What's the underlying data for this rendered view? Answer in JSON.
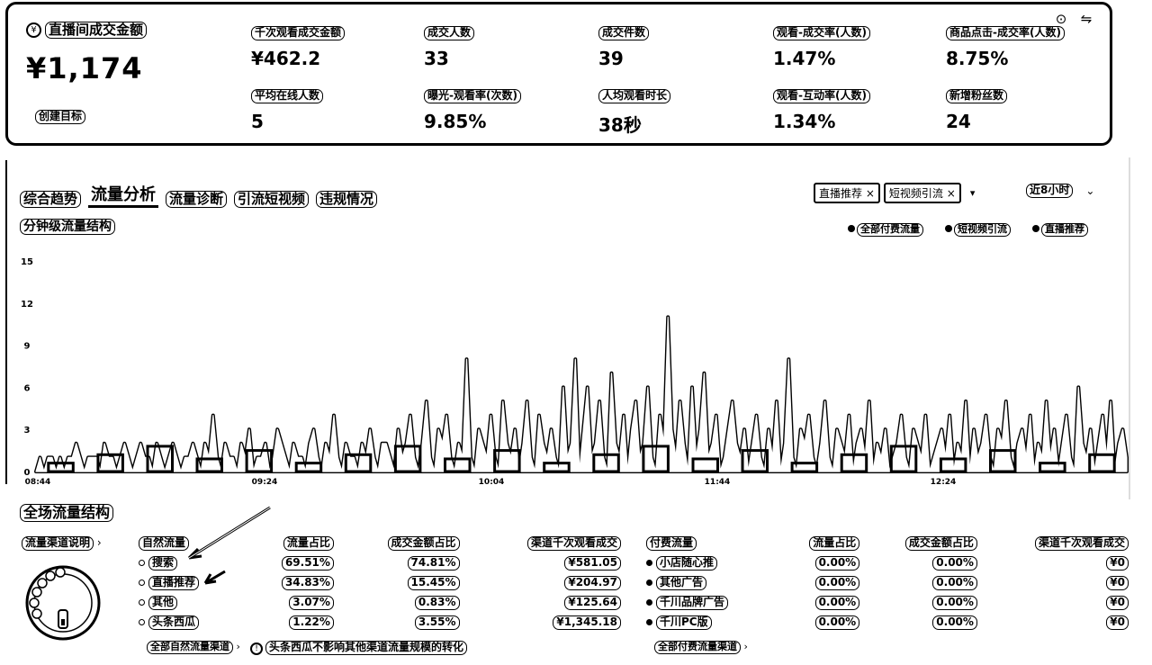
{
  "summary": {
    "main": {
      "label": "直播间成交金额",
      "value": "¥1,174",
      "goal_link": "创建目标"
    },
    "metrics": [
      {
        "label": "千次观看成交金额",
        "value": "¥462.2"
      },
      {
        "label": "成交人数",
        "value": "33"
      },
      {
        "label": "成交件数",
        "value": "39"
      },
      {
        "label": "观看-成交率(人数)",
        "value": "1.47%"
      },
      {
        "label": "商品点击-成交率(人数)",
        "value": "8.75%"
      },
      {
        "label": "平均在线人数",
        "value": "5"
      },
      {
        "label": "曝光-观看率(次数)",
        "value": "9.85%"
      },
      {
        "label": "人均观看时长",
        "value": "38秒"
      },
      {
        "label": "观看-互动率(人数)",
        "value": "1.34%"
      },
      {
        "label": "新增粉丝数",
        "value": "24"
      }
    ]
  },
  "tabs": [
    "综合趋势",
    "流量分析",
    "流量诊断",
    "引流短视频",
    "违规情况"
  ],
  "active_tab": 1,
  "filters": {
    "chips": [
      "直播推荐",
      "短视频引流"
    ],
    "time_range": "近8小时"
  },
  "chart_title": "分钟级流量结构",
  "legend": [
    "全部付费流量",
    "短视频引流",
    "直播推荐"
  ],
  "chart_data": {
    "type": "area",
    "title": "分钟级流量结构",
    "y_ticks": [
      0,
      3,
      6,
      9,
      12,
      15
    ],
    "ylim": [
      0,
      15
    ],
    "x_ticks": [
      "08:44",
      "09:24",
      "10:04",
      "11:44",
      "12:24"
    ],
    "series": [
      {
        "name": "直播推荐",
        "values": [
          0,
          1,
          0,
          1,
          1,
          0,
          1,
          0,
          1,
          1,
          2,
          1,
          0,
          1,
          1,
          1,
          0,
          2,
          1,
          1,
          0,
          1,
          2,
          1,
          0,
          1,
          2,
          1,
          1,
          0,
          2,
          1,
          0,
          1,
          2,
          1,
          0,
          1,
          1,
          2,
          1,
          0,
          2,
          1,
          4,
          1,
          0,
          2,
          1,
          1,
          0,
          2,
          1,
          3,
          0,
          1,
          1,
          2,
          0,
          1,
          3,
          2,
          1,
          0,
          2,
          1,
          1,
          0,
          2,
          3,
          1,
          0,
          2,
          1,
          4,
          1,
          0,
          2,
          1,
          1,
          0,
          2,
          1,
          3,
          1,
          0,
          2,
          2,
          1,
          0,
          3,
          1,
          2,
          4,
          1,
          0,
          2,
          5,
          1,
          0,
          3,
          2,
          4,
          1,
          0,
          2,
          1,
          8,
          1,
          0,
          3,
          2,
          1,
          4,
          1,
          0,
          5,
          2,
          1,
          3,
          0,
          2,
          5,
          1,
          0,
          4,
          2,
          1,
          3,
          1,
          0,
          6,
          1,
          2,
          8,
          0,
          3,
          6,
          1,
          2,
          5,
          1,
          0,
          7,
          2,
          1,
          4,
          0,
          3,
          5,
          1,
          2,
          6,
          1,
          0,
          4,
          2,
          11,
          3,
          1,
          5,
          2,
          0,
          6,
          1,
          3,
          7,
          1,
          2,
          4,
          0,
          1,
          3,
          5,
          2,
          1,
          3,
          0,
          2,
          4,
          1,
          0,
          3,
          1,
          5,
          0,
          2,
          8,
          1,
          0,
          3,
          2,
          4,
          1,
          0,
          2,
          5,
          1,
          0,
          3,
          2,
          1,
          4,
          0,
          2,
          3,
          1,
          5,
          0,
          2,
          1,
          3,
          0,
          1,
          2,
          4,
          1,
          0,
          3,
          2,
          1,
          4,
          0,
          1,
          2,
          3,
          1,
          4,
          0,
          2,
          1,
          5,
          0,
          3,
          1,
          2,
          4,
          1,
          0,
          3,
          2,
          5,
          1,
          0,
          2,
          3,
          1,
          4,
          0,
          2,
          1,
          5,
          1,
          3,
          0,
          2,
          4,
          1,
          0,
          6,
          2,
          1,
          3,
          0,
          2,
          4,
          1,
          5,
          0,
          2,
          3,
          1
        ]
      },
      {
        "name": "短视频引流",
        "values": []
      },
      {
        "name": "全部付费流量",
        "values": []
      }
    ]
  },
  "section2": {
    "title": "全场流量结构",
    "channel_link": "流量渠道说明",
    "natural": {
      "headers": [
        "自然流量",
        "流量占比",
        "成交金额占比",
        "渠道千次观看成交"
      ],
      "rows": [
        [
          "搜索",
          "69.51%",
          "74.81%",
          "¥581.05"
        ],
        [
          "直播推荐",
          "34.83%",
          "15.45%",
          "¥204.97"
        ],
        [
          "其他",
          "3.07%",
          "0.83%",
          "¥125.64"
        ],
        [
          "头条西瓜",
          "1.22%",
          "3.55%",
          "¥1,345.18"
        ]
      ],
      "more": "全部自然流量渠道"
    },
    "paid": {
      "headers": [
        "付费流量",
        "流量占比",
        "成交金额占比",
        "渠道千次观看成交"
      ],
      "rows": [
        [
          "小店随心推",
          "0.00%",
          "0.00%",
          "¥0"
        ],
        [
          "其他广告",
          "0.00%",
          "0.00%",
          "¥0"
        ],
        [
          "千川品牌广告",
          "0.00%",
          "0.00%",
          "¥0"
        ],
        [
          "千川PC版",
          "0.00%",
          "0.00%",
          "¥0"
        ]
      ],
      "more": "全部付费流量渠道"
    },
    "notice": "头条西瓜不影响其他渠道流量规模的转化"
  }
}
